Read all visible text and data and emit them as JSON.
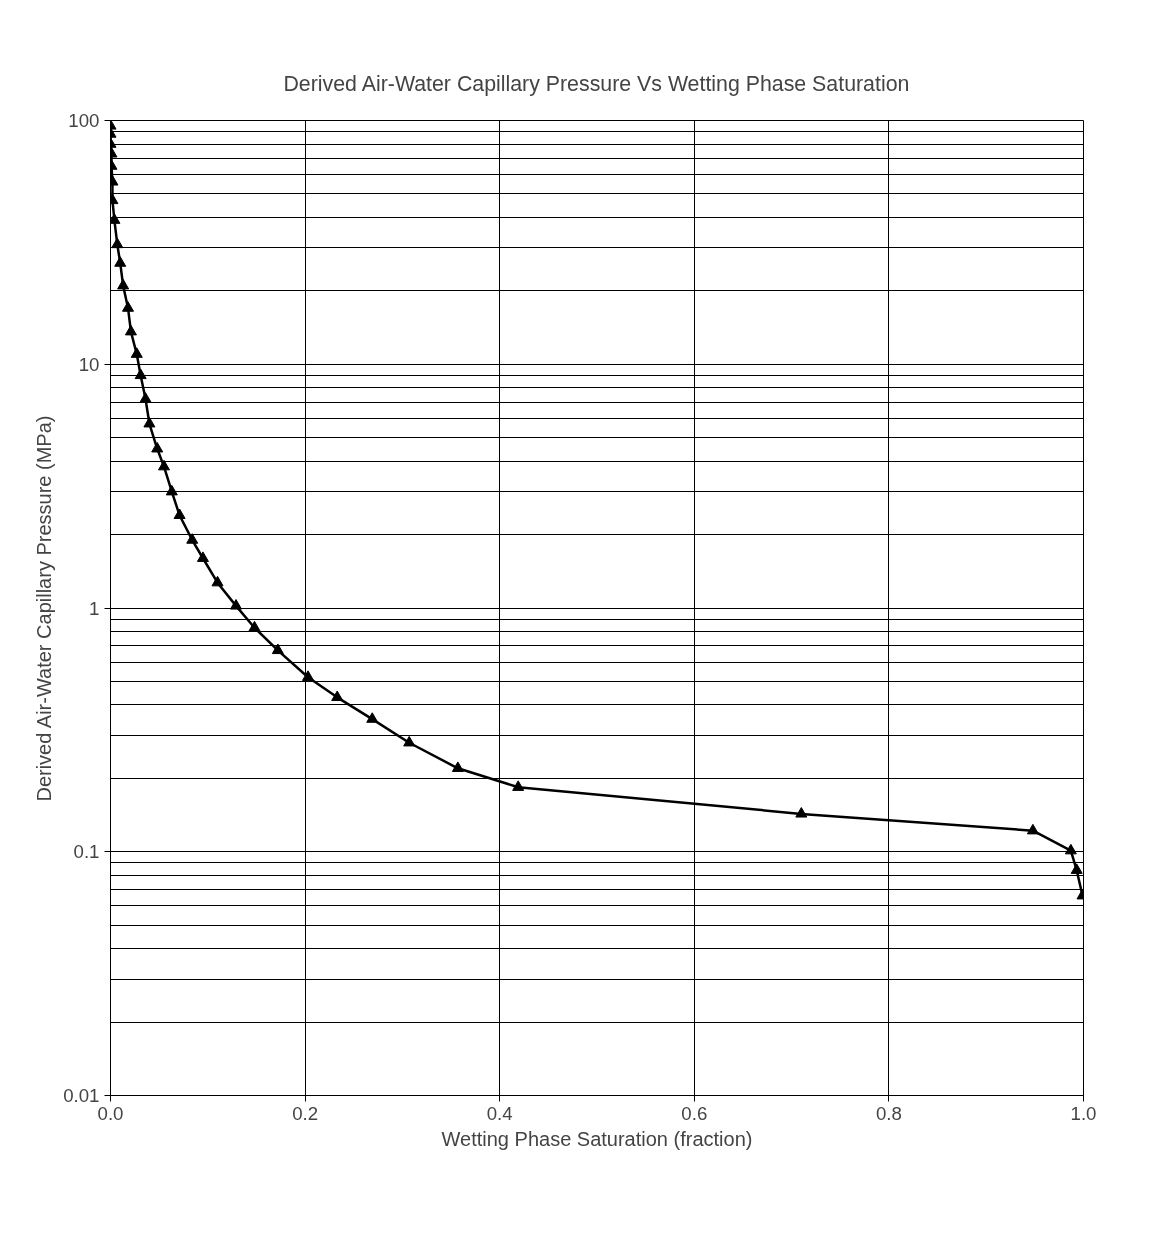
{
  "chart_data": {
    "type": "line",
    "title": "Derived Air-Water Capillary Pressure Vs Wetting Phase Saturation",
    "xlabel": "Wetting Phase Saturation (fraction)",
    "ylabel": "Derived Air-Water Capillary Pressure (MPa)",
    "x": [
      0,
      0,
      0,
      0.001,
      0.001,
      0.002,
      0.002,
      0.004,
      0.007,
      0.01,
      0.013,
      0.018,
      0.021,
      0.027,
      0.031,
      0.036,
      0.04,
      0.048,
      0.055,
      0.063,
      0.071,
      0.084,
      0.095,
      0.11,
      0.129,
      0.148,
      0.172,
      0.203,
      0.233,
      0.269,
      0.307,
      0.357,
      0.419,
      0.71,
      0.948,
      0.987,
      0.993,
      0.999
    ],
    "series": [
      {
        "color": "#000000",
        "values": [
          95,
          88,
          80,
          73,
          65,
          56,
          47,
          39,
          31,
          26,
          21,
          17,
          13.6,
          11,
          9.0,
          7.2,
          5.7,
          4.5,
          3.8,
          3.0,
          2.4,
          1.9,
          1.6,
          1.27,
          1.02,
          0.83,
          0.67,
          0.52,
          0.43,
          0.35,
          0.28,
          0.22,
          0.184,
          0.143,
          0.122,
          0.101,
          0.084,
          0.066
        ]
      }
    ],
    "log": "y",
    "grid": true,
    "marker": "triangle",
    "line_style": "solid",
    "xlim": [
      0,
      1
    ],
    "xticks": [
      {
        "value": 0,
        "label": "0.0"
      },
      0.2,
      0.4,
      0.6,
      0.8,
      {
        "value": 1,
        "label": "1.0"
      }
    ],
    "ylim": [
      0.01,
      100
    ],
    "yticks": [
      0.01,
      0.1,
      1,
      10,
      100
    ]
  }
}
